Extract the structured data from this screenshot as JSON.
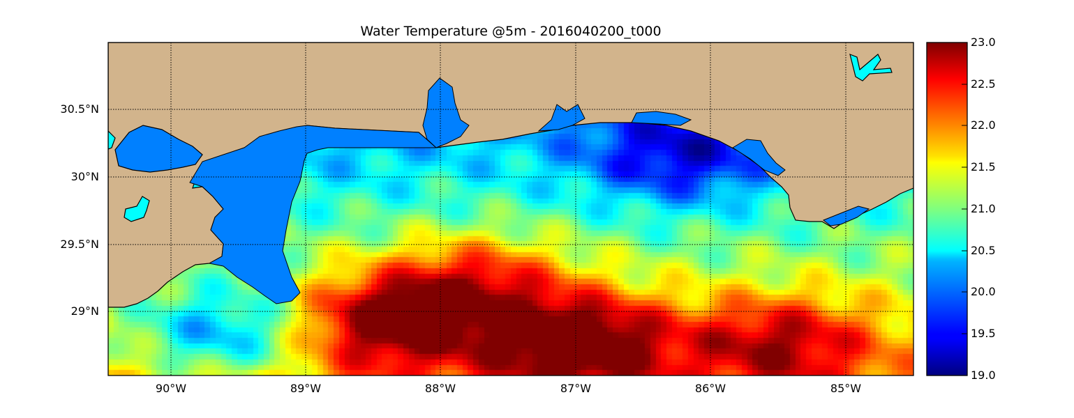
{
  "title": "Water Temperature @5m - 2016040200_t000",
  "map": {
    "lon_range": [
      -90.5,
      -84.5
    ],
    "lat_range": [
      28.55,
      31.0
    ],
    "meridians": [
      "90°W",
      "89°W",
      "88°W",
      "87°W",
      "86°W",
      "85°W"
    ],
    "parallels": [
      "30.5°N",
      "30°N",
      "29.5°N",
      "29°N"
    ],
    "land_color": "#d2b48c",
    "inland_water_color": "#0080ff",
    "lake_color": "#00ffff",
    "grid": "dotted"
  },
  "colorbar": {
    "colormap": "jet",
    "range": [
      19.0,
      23.0
    ],
    "tick_labels": [
      "23.0",
      "22.5",
      "22.0",
      "21.5",
      "21.0",
      "20.5",
      "20.0",
      "19.5",
      "19.0"
    ]
  },
  "field": {
    "variable": "water temperature",
    "depth": "5m",
    "background_value": 20.9,
    "features": [
      {
        "feature": "cold coastal band off Florida panhandle",
        "lon": -86.25,
        "lat": 30.15,
        "value": 19.7
      },
      {
        "feature": "cold eddy south of Mississippi delta",
        "lon": -89.65,
        "lat": 28.85,
        "value": 19.4
      },
      {
        "feature": "warm Loop Current intrusion",
        "lon": -87.0,
        "lat": 28.8,
        "value": 23.0
      },
      {
        "feature": "warm eddy west",
        "lon": -88.4,
        "lat": 28.95,
        "value": 22.8
      },
      {
        "feature": "warm filaments east",
        "lon": -85.5,
        "lat": 28.8,
        "value": 22.3
      },
      {
        "feature": "warm plume toward north",
        "lon": -87.75,
        "lat": 29.25,
        "value": 22.2
      },
      {
        "feature": "Mississippi Sound",
        "lon": -88.8,
        "lat": 30.15,
        "value": 20.8
      }
    ]
  }
}
